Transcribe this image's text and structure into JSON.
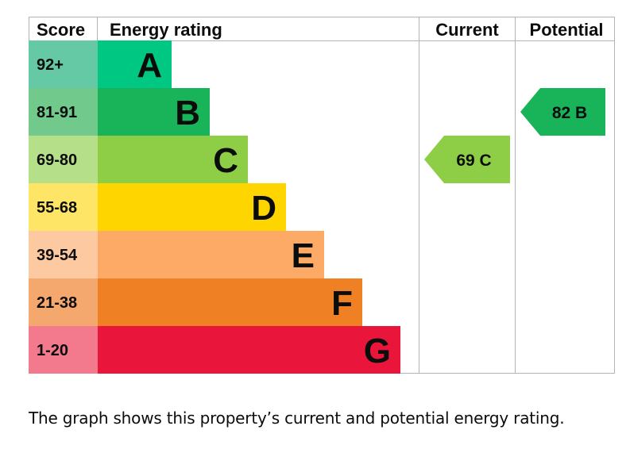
{
  "chart_data": {
    "type": "bar",
    "headers": {
      "score": "Score",
      "energy_rating": "Energy rating",
      "current": "Current",
      "potential": "Potential"
    },
    "bands": [
      {
        "letter": "A",
        "range": "92+",
        "color": "#00c781",
        "score_color": "#64c9a4"
      },
      {
        "letter": "B",
        "range": "81-91",
        "color": "#19b459",
        "score_color": "#72c98c"
      },
      {
        "letter": "C",
        "range": "69-80",
        "color": "#8dce46",
        "score_color": "#b6df8a"
      },
      {
        "letter": "D",
        "range": "55-68",
        "color": "#ffd500",
        "score_color": "#ffe566"
      },
      {
        "letter": "E",
        "range": "39-54",
        "color": "#fcaa65",
        "score_color": "#fdc9a0"
      },
      {
        "letter": "F",
        "range": "21-38",
        "color": "#ef8023",
        "score_color": "#f5a86e"
      },
      {
        "letter": "G",
        "range": "1-20",
        "color": "#e9153b",
        "score_color": "#f27a8c"
      }
    ],
    "current": {
      "value": 69,
      "band": "C",
      "label": "69  C",
      "color": "#8dce46"
    },
    "potential": {
      "value": 82,
      "band": "B",
      "label": "82  B",
      "color": "#19b459"
    }
  },
  "caption": "The graph shows this property’s current and potential energy rating."
}
